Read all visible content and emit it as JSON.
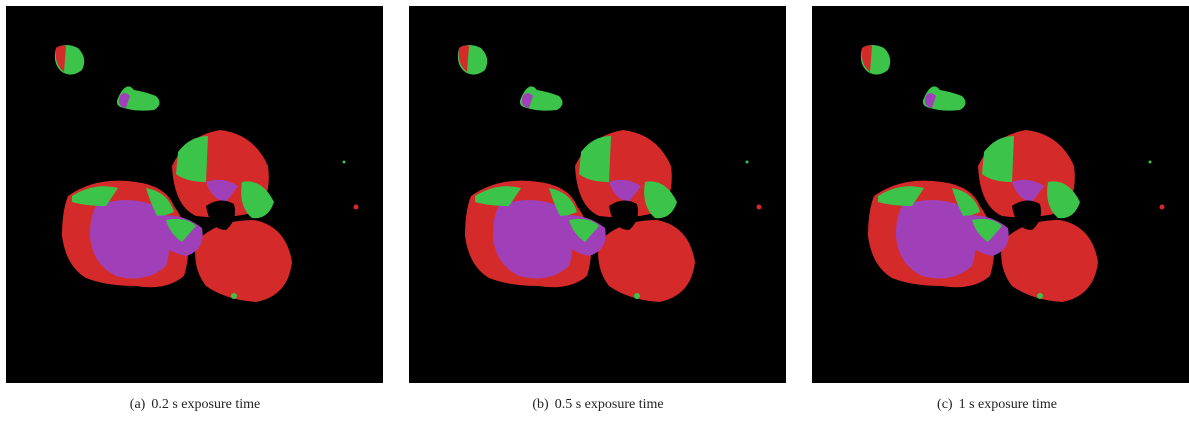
{
  "panels": [
    {
      "label": "(a)",
      "caption": "0.2 s exposure time"
    },
    {
      "label": "(b)",
      "caption": "0.5 s exposure time"
    },
    {
      "label": "(c)",
      "caption": "1 s exposure time"
    }
  ]
}
